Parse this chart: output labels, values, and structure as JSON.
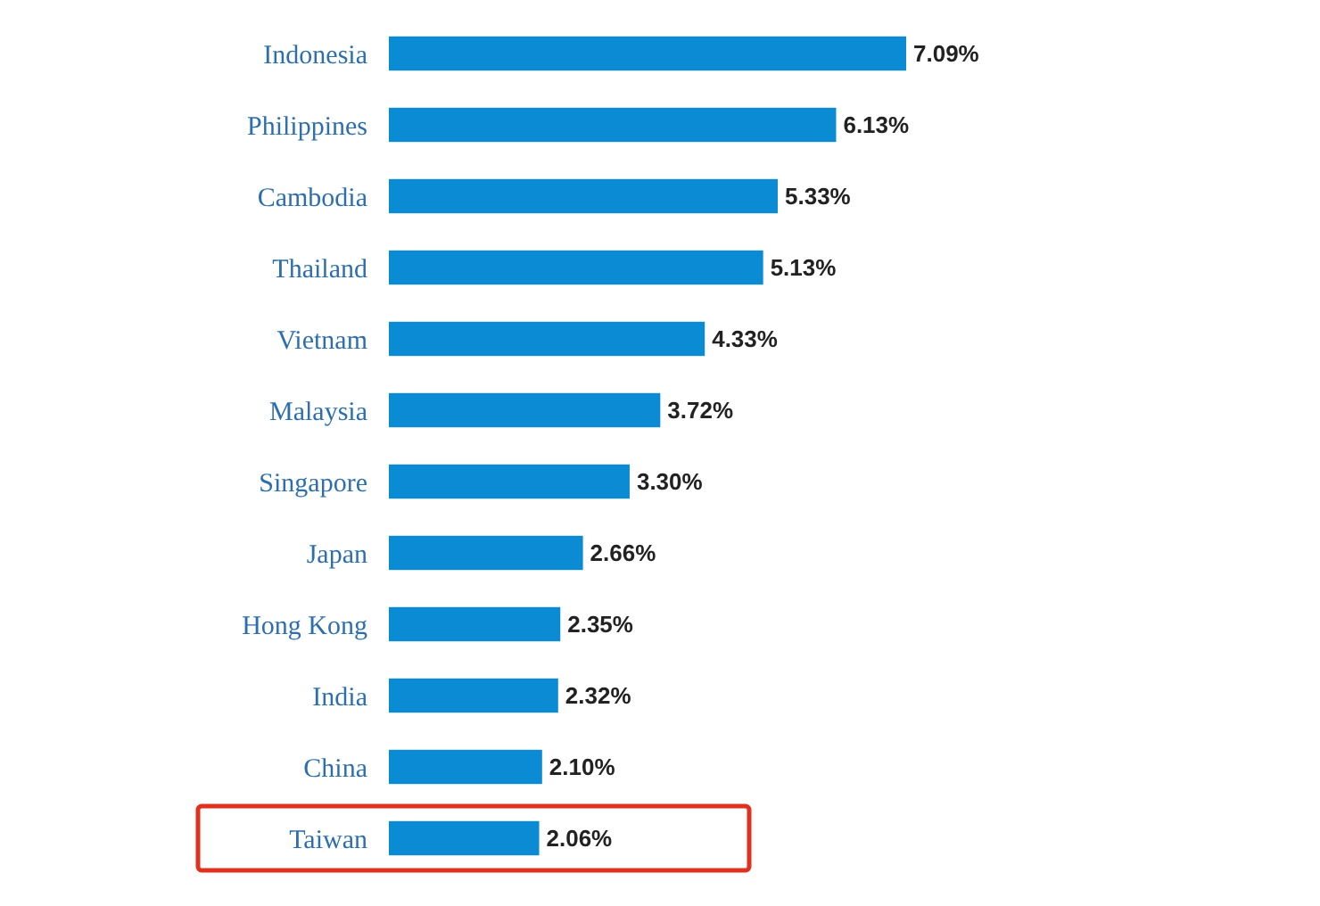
{
  "chart_data": {
    "type": "bar",
    "orientation": "horizontal",
    "categories": [
      "Indonesia",
      "Philippines",
      "Cambodia",
      "Thailand",
      "Vietnam",
      "Malaysia",
      "Singapore",
      "Japan",
      "Hong Kong",
      "India",
      "China",
      "Taiwan"
    ],
    "values": [
      7.09,
      6.13,
      5.33,
      5.13,
      4.33,
      3.72,
      3.3,
      2.66,
      2.35,
      2.32,
      2.1,
      2.06
    ],
    "value_labels": [
      "7.09%",
      "6.13%",
      "5.33%",
      "5.13%",
      "4.33%",
      "3.72%",
      "3.30%",
      "2.66%",
      "2.35%",
      "2.32%",
      "2.10%",
      "2.06%"
    ],
    "color": "#0a8bd3"
  }
}
